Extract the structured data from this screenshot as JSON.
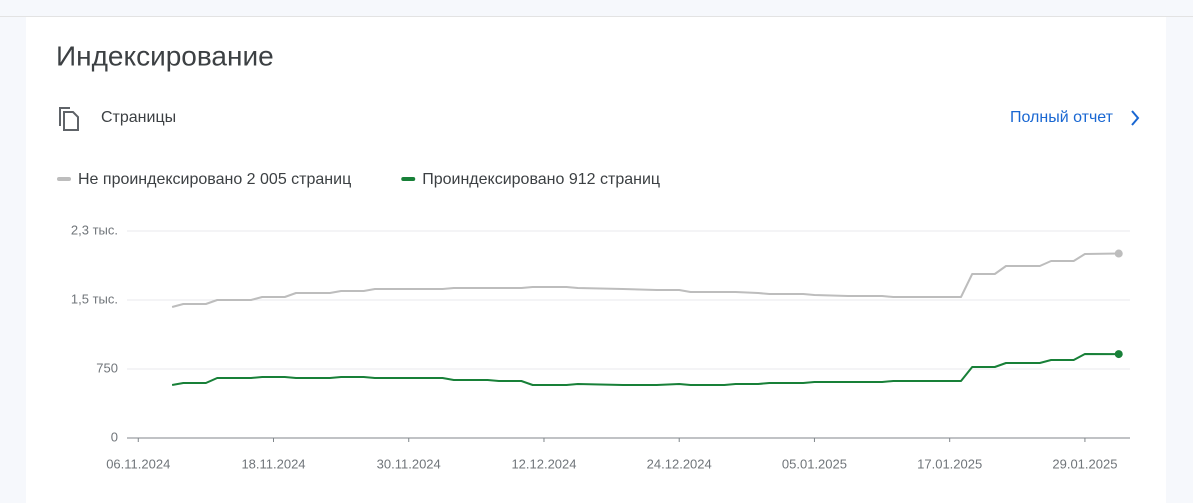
{
  "header": {
    "title": "Индексирование",
    "section": "Страницы",
    "link": "Полный отчет"
  },
  "chart_data": {
    "type": "line",
    "x": [
      "2024-11-09",
      "2024-11-10",
      "2024-11-12",
      "2024-11-13",
      "2024-11-16",
      "2024-11-17",
      "2024-11-19",
      "2024-11-20",
      "2024-11-23",
      "2024-11-24",
      "2024-11-26",
      "2024-11-27",
      "2024-12-03",
      "2024-12-04",
      "2024-12-07",
      "2024-12-08",
      "2024-12-10",
      "2024-12-11",
      "2024-12-14",
      "2024-12-15",
      "2024-12-19",
      "2024-12-22",
      "2024-12-24",
      "2024-12-25",
      "2024-12-28",
      "2024-12-29",
      "2024-12-31",
      "2025-01-01",
      "2025-01-04",
      "2025-01-05",
      "2025-01-08",
      "2025-01-11",
      "2025-01-12",
      "2025-01-18",
      "2025-01-19",
      "2025-01-21",
      "2025-01-22",
      "2025-01-25",
      "2025-01-26",
      "2025-01-28",
      "2025-01-29",
      "2025-02-01"
    ],
    "series": [
      {
        "name": "Не проиндексировано 2 005 страниц",
        "color": "#bdbdbd",
        "values": [
          1424,
          1457,
          1457,
          1500,
          1500,
          1533,
          1533,
          1576,
          1576,
          1598,
          1598,
          1620,
          1620,
          1630,
          1630,
          1630,
          1630,
          1641,
          1641,
          1630,
          1620,
          1609,
          1609,
          1587,
          1587,
          1587,
          1576,
          1565,
          1565,
          1554,
          1543,
          1543,
          1533,
          1533,
          1783,
          1783,
          1870,
          1870,
          1924,
          1924,
          2000,
          2005
        ]
      },
      {
        "name": "Проиндексировано 912 страниц",
        "color": "#188038",
        "values": [
          576,
          598,
          598,
          652,
          652,
          663,
          663,
          652,
          652,
          663,
          663,
          652,
          652,
          630,
          630,
          620,
          620,
          576,
          576,
          587,
          576,
          576,
          587,
          576,
          576,
          587,
          587,
          598,
          598,
          609,
          609,
          609,
          620,
          620,
          772,
          772,
          815,
          815,
          848,
          848,
          913,
          912
        ]
      }
    ],
    "xlim": [
      "2024-11-05",
      "2025-02-02"
    ],
    "xticks": [
      {
        "value": "2024-11-06",
        "label": "06.11.2024"
      },
      {
        "value": "2024-11-18",
        "label": "18.11.2024"
      },
      {
        "value": "2024-11-30",
        "label": "30.11.2024"
      },
      {
        "value": "2024-12-12",
        "label": "12.12.2024"
      },
      {
        "value": "2024-12-24",
        "label": "24.12.2024"
      },
      {
        "value": "2025-01-05",
        "label": "05.01.2025"
      },
      {
        "value": "2025-01-17",
        "label": "17.01.2025"
      },
      {
        "value": "2025-01-29",
        "label": "29.01.2025"
      }
    ],
    "ylim": [
      0,
      2250
    ],
    "yticks": [
      0,
      750,
      {
        "value": 1500,
        "label": "1,5 тыс."
      },
      {
        "value": 2250,
        "label": "2,3 тыс."
      }
    ],
    "grid": true
  }
}
